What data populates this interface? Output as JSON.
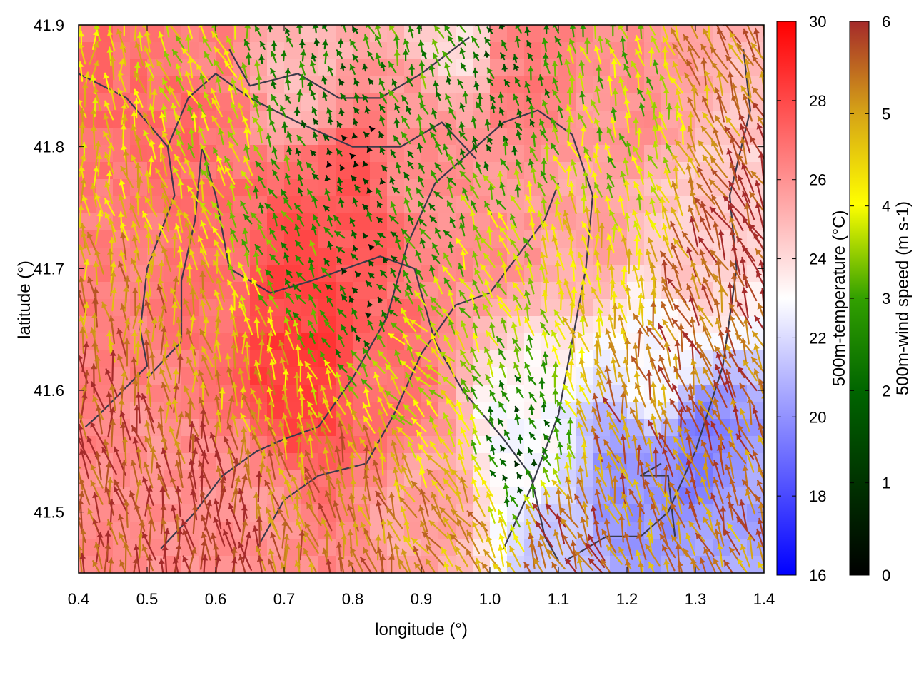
{
  "chart_data": {
    "type": "heatmap",
    "subtype": "map with colored field and wind vectors",
    "title": "",
    "xlabel": "longitude (°)",
    "ylabel": "latitude (°)",
    "xlim": [
      0.4,
      1.4
    ],
    "ylim": [
      41.45,
      41.9
    ],
    "x_ticks": [
      "0.4",
      "0.5",
      "0.6",
      "0.7",
      "0.8",
      "0.9",
      "1.0",
      "1.1",
      "1.2",
      "1.3",
      "1.4"
    ],
    "y_ticks": [
      "41.5",
      "41.6",
      "41.7",
      "41.8",
      "41.9"
    ],
    "temperature_colorbar": {
      "label": "500m-temperature (°C)",
      "range": [
        16,
        30
      ],
      "ticks": [
        "16",
        "18",
        "20",
        "22",
        "24",
        "26",
        "28",
        "30"
      ],
      "colors": [
        "#0000ff",
        "#ffffff",
        "#ff0000"
      ]
    },
    "wind_colorbar": {
      "label": "500m-wind speed (m s-1)",
      "range": [
        0,
        6
      ],
      "ticks": [
        "0",
        "1",
        "2",
        "3",
        "4",
        "5",
        "6"
      ],
      "colors": [
        "#000000",
        "#006400",
        "#32a000",
        "#ffff00",
        "#d4a017",
        "#a52a2a"
      ]
    },
    "temperature_regions": [
      {
        "lon": 0.45,
        "lat": 41.85,
        "temp": 27.0
      },
      {
        "lon": 0.55,
        "lat": 41.82,
        "temp": 27.0
      },
      {
        "lon": 0.48,
        "lat": 41.72,
        "temp": 26.5
      },
      {
        "lon": 0.6,
        "lat": 41.7,
        "temp": 27.0
      },
      {
        "lon": 0.72,
        "lat": 41.68,
        "temp": 28.0
      },
      {
        "lon": 0.72,
        "lat": 41.62,
        "temp": 28.5
      },
      {
        "lon": 0.8,
        "lat": 41.75,
        "temp": 27.5
      },
      {
        "lon": 0.85,
        "lat": 41.6,
        "temp": 27.0
      },
      {
        "lon": 0.9,
        "lat": 41.8,
        "temp": 26.0
      },
      {
        "lon": 1.0,
        "lat": 41.75,
        "temp": 26.0
      },
      {
        "lon": 1.05,
        "lat": 41.86,
        "temp": 26.5
      },
      {
        "lon": 1.2,
        "lat": 41.85,
        "temp": 26.0
      },
      {
        "lon": 1.15,
        "lat": 41.75,
        "temp": 25.5
      },
      {
        "lon": 1.3,
        "lat": 41.72,
        "temp": 24.5
      },
      {
        "lon": 1.25,
        "lat": 41.62,
        "temp": 23.0
      },
      {
        "lon": 1.2,
        "lat": 41.52,
        "temp": 20.0
      },
      {
        "lon": 1.3,
        "lat": 41.55,
        "temp": 19.5
      },
      {
        "lon": 1.35,
        "lat": 41.48,
        "temp": 20.5
      },
      {
        "lon": 1.05,
        "lat": 41.55,
        "temp": 23.0
      },
      {
        "lon": 1.1,
        "lat": 41.47,
        "temp": 21.5
      },
      {
        "lon": 0.9,
        "lat": 41.5,
        "temp": 25.5
      },
      {
        "lon": 0.65,
        "lat": 41.5,
        "temp": 26.0
      },
      {
        "lon": 0.5,
        "lat": 41.55,
        "temp": 26.0
      },
      {
        "lon": 0.45,
        "lat": 41.62,
        "temp": 26.5
      },
      {
        "lon": 0.72,
        "lat": 41.88,
        "temp": 25.0
      },
      {
        "lon": 0.58,
        "lat": 41.88,
        "temp": 26.5
      },
      {
        "lon": 0.95,
        "lat": 41.9,
        "temp": 24.0
      }
    ],
    "wind_regions": [
      {
        "lon": 0.45,
        "lat": 41.55,
        "speed": 5.8,
        "dir_deg": 100
      },
      {
        "lon": 0.5,
        "lat": 41.65,
        "speed": 5.0,
        "dir_deg": 95
      },
      {
        "lon": 0.45,
        "lat": 41.8,
        "speed": 4.2,
        "dir_deg": 100
      },
      {
        "lon": 0.6,
        "lat": 41.82,
        "speed": 3.5,
        "dir_deg": 115
      },
      {
        "lon": 0.65,
        "lat": 41.6,
        "speed": 4.6,
        "dir_deg": 100
      },
      {
        "lon": 0.72,
        "lat": 41.72,
        "speed": 2.2,
        "dir_deg": 120
      },
      {
        "lon": 0.8,
        "lat": 41.8,
        "speed": 0.6,
        "dir_deg": 120
      },
      {
        "lon": 0.82,
        "lat": 41.7,
        "speed": 1.0,
        "dir_deg": 130
      },
      {
        "lon": 0.9,
        "lat": 41.62,
        "speed": 3.6,
        "dir_deg": 130
      },
      {
        "lon": 0.9,
        "lat": 41.75,
        "speed": 2.0,
        "dir_deg": 120
      },
      {
        "lon": 1.0,
        "lat": 41.85,
        "speed": 1.5,
        "dir_deg": 110
      },
      {
        "lon": 1.0,
        "lat": 41.7,
        "speed": 3.2,
        "dir_deg": 115
      },
      {
        "lon": 1.05,
        "lat": 41.55,
        "speed": 1.2,
        "dir_deg": 110
      },
      {
        "lon": 1.1,
        "lat": 41.48,
        "speed": 5.6,
        "dir_deg": 115
      },
      {
        "lon": 1.2,
        "lat": 41.58,
        "speed": 5.2,
        "dir_deg": 105
      },
      {
        "lon": 1.3,
        "lat": 41.65,
        "speed": 5.5,
        "dir_deg": 110
      },
      {
        "lon": 1.38,
        "lat": 41.75,
        "speed": 5.9,
        "dir_deg": 115
      },
      {
        "lon": 1.35,
        "lat": 41.85,
        "speed": 5.0,
        "dir_deg": 110
      },
      {
        "lon": 1.2,
        "lat": 41.82,
        "speed": 3.0,
        "dir_deg": 105
      },
      {
        "lon": 1.15,
        "lat": 41.7,
        "speed": 4.0,
        "dir_deg": 100
      },
      {
        "lon": 0.6,
        "lat": 41.5,
        "speed": 5.9,
        "dir_deg": 95
      },
      {
        "lon": 0.8,
        "lat": 41.5,
        "speed": 5.2,
        "dir_deg": 105
      },
      {
        "lon": 0.95,
        "lat": 41.48,
        "speed": 4.8,
        "dir_deg": 120
      },
      {
        "lon": 0.72,
        "lat": 41.88,
        "speed": 1.8,
        "dir_deg": 100
      },
      {
        "lon": 0.88,
        "lat": 41.88,
        "speed": 2.2,
        "dir_deg": 110
      },
      {
        "lon": 0.4,
        "lat": 41.88,
        "speed": 4.0,
        "dir_deg": 90
      }
    ],
    "boundaries": [
      [
        [
          0.4,
          41.86
        ],
        [
          0.47,
          41.84
        ],
        [
          0.53,
          41.8
        ],
        [
          0.54,
          41.76
        ],
        [
          0.5,
          41.7
        ],
        [
          0.49,
          41.65
        ],
        [
          0.5,
          41.62
        ],
        [
          0.43,
          41.58
        ],
        [
          0.41,
          41.57
        ]
      ],
      [
        [
          0.53,
          41.8
        ],
        [
          0.56,
          41.84
        ],
        [
          0.6,
          41.86
        ],
        [
          0.65,
          41.84
        ],
        [
          0.72,
          41.82
        ],
        [
          0.8,
          41.8
        ],
        [
          0.87,
          41.8
        ],
        [
          0.93,
          41.82
        ],
        [
          0.98,
          41.79
        ]
      ],
      [
        [
          0.62,
          41.88
        ],
        [
          0.65,
          41.85
        ],
        [
          0.72,
          41.86
        ],
        [
          0.78,
          41.84
        ],
        [
          0.84,
          41.84
        ],
        [
          0.9,
          41.86
        ],
        [
          0.97,
          41.89
        ]
      ],
      [
        [
          0.58,
          41.8
        ],
        [
          0.57,
          41.74
        ],
        [
          0.55,
          41.69
        ],
        [
          0.55,
          41.64
        ],
        [
          0.5,
          41.61
        ]
      ],
      [
        [
          0.58,
          41.8
        ],
        [
          0.6,
          41.76
        ],
        [
          0.62,
          41.7
        ],
        [
          0.68,
          41.68
        ],
        [
          0.74,
          41.69
        ],
        [
          0.79,
          41.7
        ],
        [
          0.84,
          41.71
        ],
        [
          0.89,
          41.7
        ],
        [
          0.92,
          41.64
        ],
        [
          0.96,
          41.6
        ],
        [
          1.02,
          41.56
        ],
        [
          1.06,
          41.53
        ],
        [
          1.08,
          41.48
        ],
        [
          1.1,
          41.46
        ]
      ],
      [
        [
          0.52,
          41.47
        ],
        [
          0.57,
          41.5
        ],
        [
          0.61,
          41.53
        ],
        [
          0.66,
          41.55
        ],
        [
          0.7,
          41.56
        ],
        [
          0.75,
          41.57
        ],
        [
          0.8,
          41.61
        ],
        [
          0.85,
          41.66
        ],
        [
          0.88,
          41.72
        ],
        [
          0.92,
          41.77
        ],
        [
          0.96,
          41.79
        ],
        [
          1.02,
          41.82
        ],
        [
          1.07,
          41.83
        ],
        [
          1.12,
          41.81
        ],
        [
          1.15,
          41.76
        ],
        [
          1.14,
          41.7
        ],
        [
          1.12,
          41.64
        ],
        [
          1.1,
          41.58
        ],
        [
          1.06,
          41.52
        ],
        [
          1.02,
          41.47
        ]
      ],
      [
        [
          0.66,
          41.47
        ],
        [
          0.7,
          41.51
        ],
        [
          0.75,
          41.53
        ],
        [
          0.82,
          41.54
        ],
        [
          0.86,
          41.58
        ],
        [
          0.9,
          41.63
        ],
        [
          0.95,
          41.67
        ],
        [
          1.0,
          41.68
        ],
        [
          1.04,
          41.71
        ],
        [
          1.08,
          41.74
        ],
        [
          1.1,
          41.77
        ]
      ],
      [
        [
          1.11,
          41.46
        ],
        [
          1.17,
          41.48
        ],
        [
          1.22,
          41.48
        ],
        [
          1.26,
          41.5
        ],
        [
          1.3,
          41.55
        ],
        [
          1.34,
          41.62
        ],
        [
          1.36,
          41.7
        ],
        [
          1.35,
          41.76
        ],
        [
          1.38,
          41.83
        ],
        [
          1.37,
          41.88
        ]
      ],
      [
        [
          1.27,
          41.48
        ],
        [
          1.26,
          41.53
        ],
        [
          1.22,
          41.53
        ],
        [
          1.25,
          41.54
        ]
      ]
    ]
  }
}
